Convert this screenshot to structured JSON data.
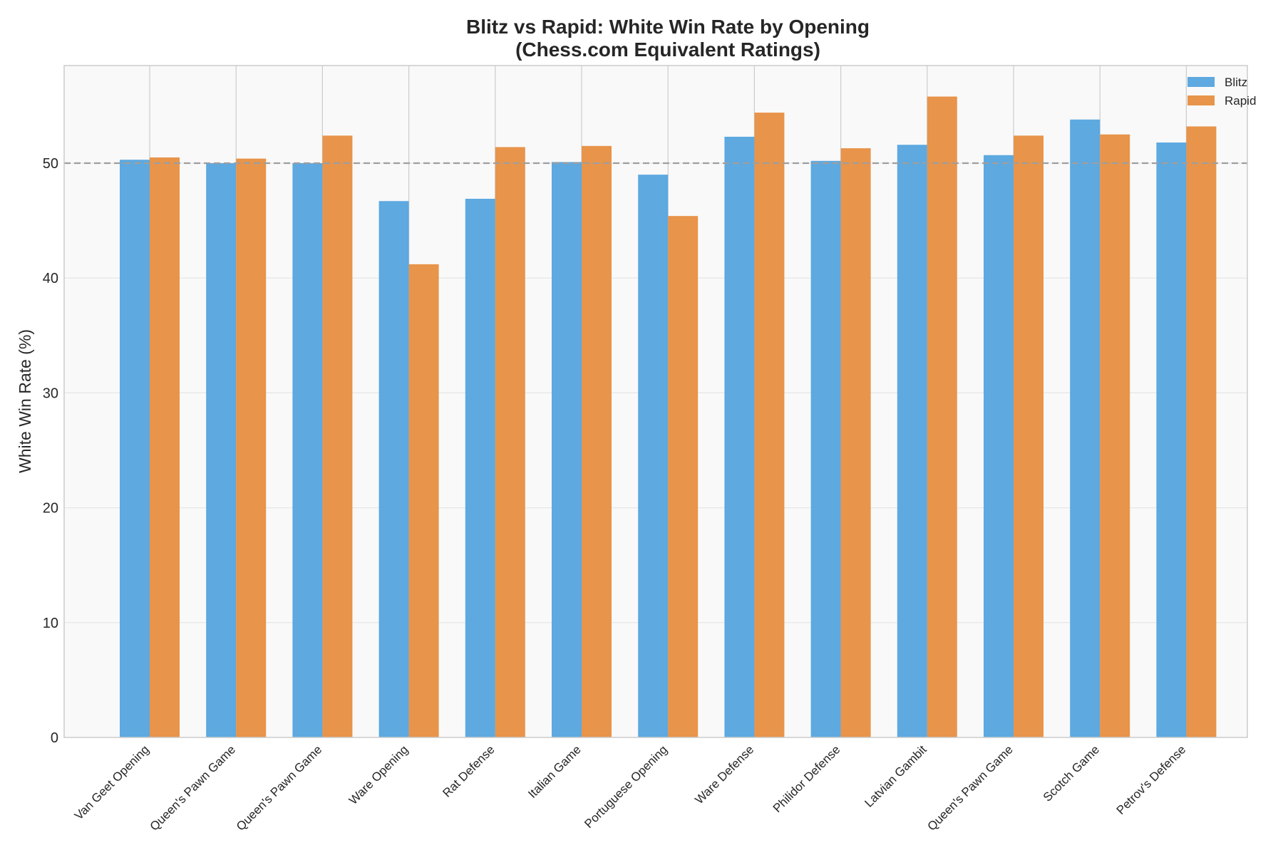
{
  "chart_data": {
    "type": "bar",
    "title": "Blitz vs Rapid: White Win Rate by Opening",
    "subtitle": "(Chess.com Equivalent Ratings)",
    "xlabel": "",
    "ylabel": "White Win Rate (%)",
    "ylim": [
      0,
      58.5
    ],
    "yticks": [
      0,
      10,
      20,
      30,
      40,
      50
    ],
    "reference_line": 50,
    "grid": true,
    "legend_position": "top-right",
    "categories": [
      "Van Geet Opening",
      "Queen's Pawn Game",
      "Queen's Pawn Game",
      "Ware Opening",
      "Rat Defense",
      "Italian Game",
      "Portuguese Opening",
      "Ware Defense",
      "Philidor Defense",
      "Latvian Gambit",
      "Queen's Pawn Game",
      "Scotch Game",
      "Petrov's Defense"
    ],
    "series": [
      {
        "name": "Blitz",
        "color": "#5DA9E0",
        "values": [
          50.3,
          50.0,
          50.0,
          46.7,
          46.9,
          50.1,
          49.0,
          52.3,
          50.2,
          51.6,
          50.7,
          53.8,
          51.8
        ]
      },
      {
        "name": "Rapid",
        "color": "#E8944A",
        "values": [
          50.5,
          50.4,
          52.4,
          41.2,
          51.4,
          51.5,
          45.4,
          54.4,
          51.3,
          55.8,
          52.4,
          52.5,
          53.2
        ]
      }
    ]
  }
}
